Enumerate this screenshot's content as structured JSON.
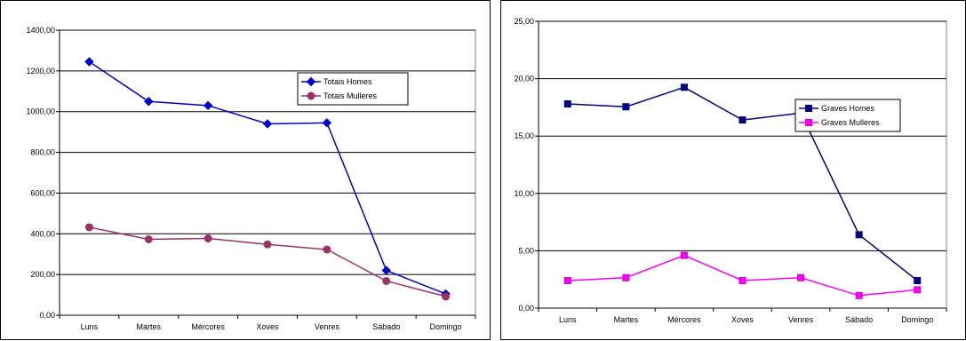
{
  "charts": [
    {
      "type": "line",
      "categories": [
        "Luns",
        "Martes",
        "Mércores",
        "Xoves",
        "Venres",
        "Sábado",
        "Domingo"
      ],
      "ylim": [
        0,
        1400
      ],
      "ytick_labels": [
        "0,00",
        "200,00",
        "400,00",
        "600,00",
        "800,00",
        "1000,00",
        "1200,00",
        "1400,00"
      ],
      "ytick_values": [
        0,
        200,
        400,
        600,
        800,
        1000,
        1200,
        1400
      ],
      "grid": true,
      "legend_position": "upper-right",
      "series": [
        {
          "name": "Totais Homes",
          "color": "#0000cc",
          "marker": "diamond",
          "values": [
            1245,
            1050,
            1030,
            940,
            945,
            220,
            105
          ]
        },
        {
          "name": "Totais Mulleres",
          "color": "#993366",
          "marker": "circle",
          "values": [
            432,
            373,
            377,
            348,
            323,
            168,
            92
          ]
        }
      ]
    },
    {
      "type": "line",
      "categories": [
        "Luns",
        "Martes",
        "Mércores",
        "Xoves",
        "Venres",
        "Sábado",
        "Domingo"
      ],
      "ylim": [
        0,
        25
      ],
      "ytick_labels": [
        "0,00",
        "5,00",
        "10,00",
        "15,00",
        "20,00",
        "25,00"
      ],
      "ytick_values": [
        0,
        5,
        10,
        15,
        20,
        25
      ],
      "grid": true,
      "legend_position": "upper-right",
      "series": [
        {
          "name": "Graves Homes",
          "color": "#000080",
          "marker": "square",
          "values": [
            17.8,
            17.55,
            19.25,
            16.4,
            17,
            6.4,
            2.4
          ]
        },
        {
          "name": "Graves Mulleres",
          "color": "#ff00ff",
          "marker": "square",
          "values": [
            2.4,
            2.65,
            4.6,
            2.4,
            2.65,
            1.1,
            1.6
          ]
        }
      ]
    }
  ]
}
